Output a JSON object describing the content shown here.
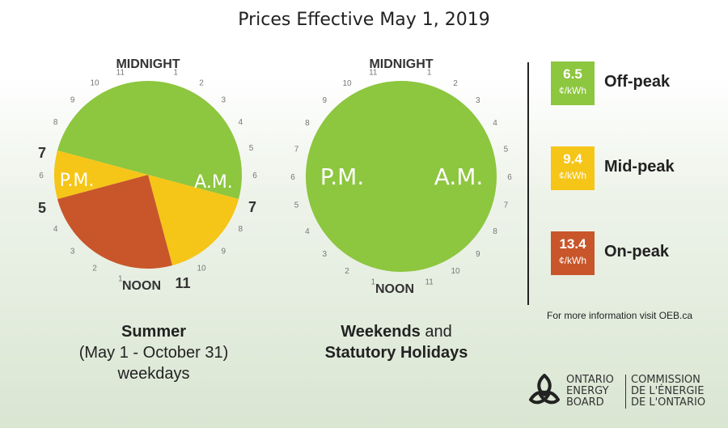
{
  "title": "Prices Effective May 1, 2019",
  "clock_labels": {
    "midnight": "MIDNIGHT",
    "noon": "NOON",
    "am": "A.M.",
    "pm": "P.M.",
    "hours": [
      "11",
      "12",
      "1",
      "2",
      "3",
      "4",
      "5",
      "6",
      "7",
      "8",
      "9",
      "10",
      "11",
      "12",
      "1",
      "2",
      "3",
      "4",
      "5",
      "6",
      "7",
      "8",
      "9",
      "10"
    ]
  },
  "summer_clock": {
    "boundary_labels": {
      "left_7": "7",
      "left_5": "5",
      "right_7": "7",
      "noon_11": "11"
    },
    "segments": [
      {
        "period": "off-peak",
        "from_hour": 19,
        "to_hour": 31
      },
      {
        "period": "mid-peak",
        "from_hour": 7,
        "to_hour": 11
      },
      {
        "period": "on-peak",
        "from_hour": 11,
        "to_hour": 17
      },
      {
        "period": "mid-peak",
        "from_hour": 17,
        "to_hour": 19
      }
    ]
  },
  "weekend_clock": {
    "segments": [
      {
        "period": "off-peak",
        "from_hour": 0,
        "to_hour": 24
      }
    ]
  },
  "captions": {
    "summer_title": "Summer",
    "summer_dates": "(May 1 - October 31)",
    "summer_days": "weekdays",
    "weekend_line1_bold": "Weekends",
    "weekend_line1_rest": " and",
    "weekend_line2": "Statutory Holidays"
  },
  "legend": [
    {
      "price": "6.5",
      "unit": "¢/kWh",
      "label": "Off-peak",
      "color": "#8dc63f"
    },
    {
      "price": "9.4",
      "unit": "¢/kWh",
      "label": "Mid-peak",
      "color": "#f5c518"
    },
    {
      "price": "13.4",
      "unit": "¢/kWh",
      "label": "On-peak",
      "color": "#c8562a"
    }
  ],
  "colors": {
    "off-peak": "#8dc63f",
    "mid-peak": "#f5c518",
    "on-peak": "#c8562a"
  },
  "more_info": "For more information visit OEB.ca",
  "logo": {
    "en_line1": "ONTARIO",
    "en_line2": "ENERGY",
    "en_line3": "BOARD",
    "fr_line1": "COMMISSION",
    "fr_line2": "DE L'ÉNERGIE",
    "fr_line3": "DE L'ONTARIO"
  }
}
